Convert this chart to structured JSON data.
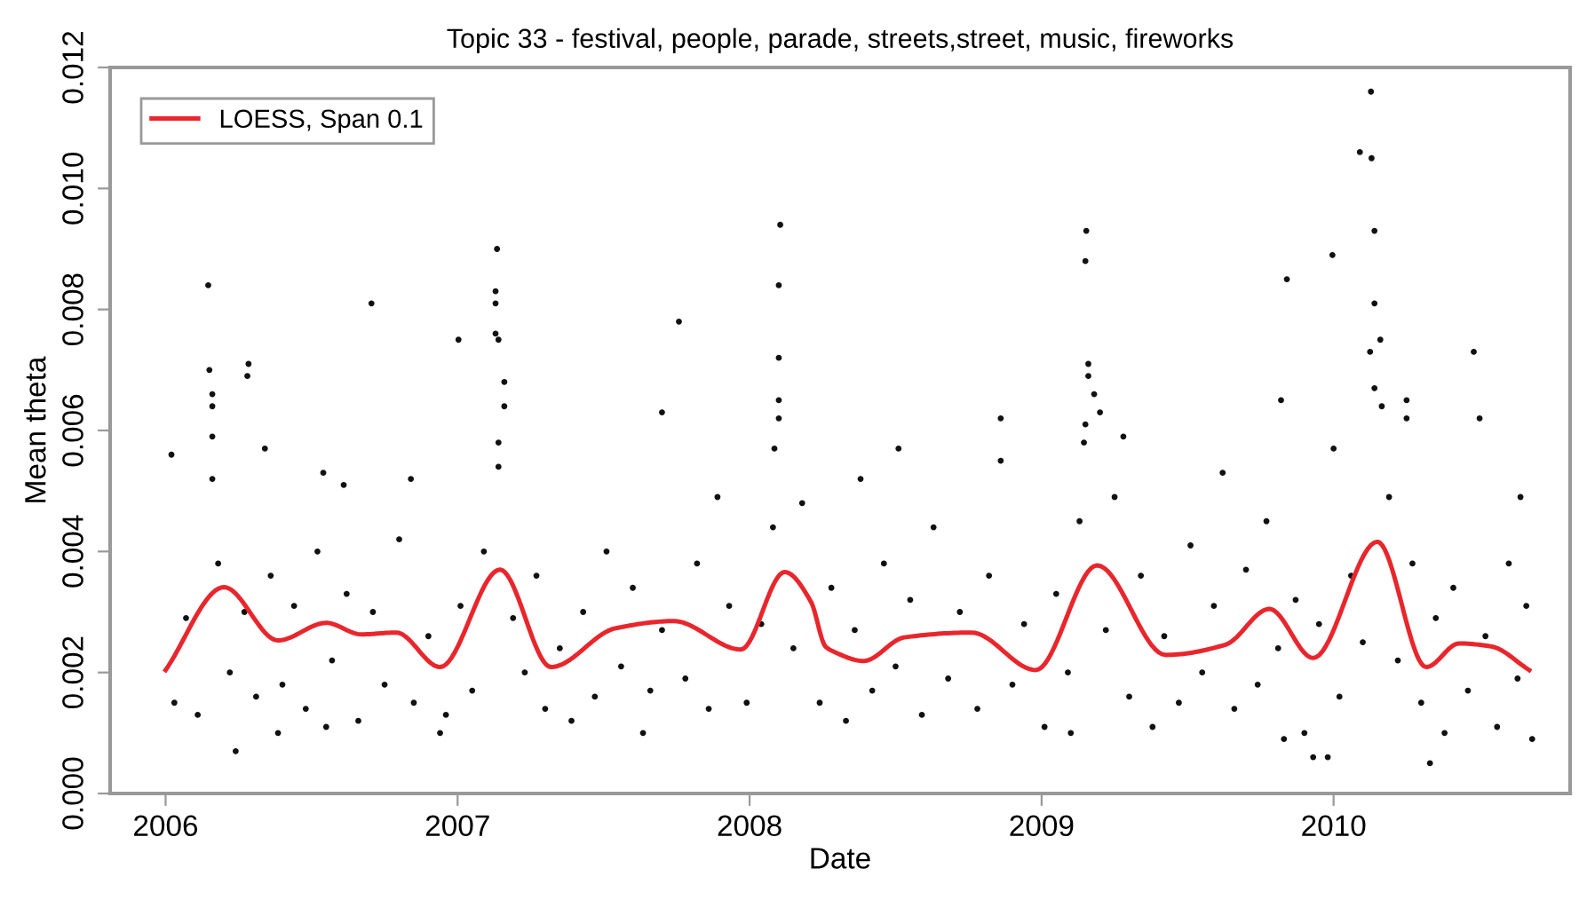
{
  "chart_data": {
    "type": "scatter",
    "title": "Topic 33 - festival, people, parade, streets,street, music, fireworks",
    "xlabel": "Date",
    "ylabel": "Mean theta",
    "xlim": [
      2005.81,
      2010.81
    ],
    "ylim": [
      0,
      0.012
    ],
    "xticks": [
      2006,
      2007,
      2008,
      2009,
      2010
    ],
    "yticks": [
      {
        "value": 0,
        "label": "0.000"
      },
      {
        "value": 0.002,
        "label": "0.002"
      },
      {
        "value": 0.004,
        "label": "0.004"
      },
      {
        "value": 0.006,
        "label": "0.006"
      },
      {
        "value": 0.008,
        "label": "0.008"
      },
      {
        "value": 0.01,
        "label": "0.010"
      },
      {
        "value": 0.012,
        "label": "0.012"
      }
    ],
    "grid": false,
    "legend": "top left",
    "marker": "circle",
    "series": [
      {
        "color": "#111111",
        "x": [
          2006.146,
          2006.15,
          2006.16,
          2006.16,
          2006.16,
          2006.16,
          2006.284,
          2006.28,
          2006.34,
          2006.02,
          2006.705,
          2007.003,
          2007.135,
          2007.13,
          2007.13,
          2007.13,
          2007.14,
          2007.16,
          2007.16,
          2007.14,
          2007.14,
          2007.758,
          2007.7,
          2008.105,
          2008.1,
          2008.1,
          2008.1,
          2008.1,
          2008.085,
          2006.61,
          2006.54,
          2006.84,
          2007.89,
          2006.24,
          2006.385,
          2006.94,
          2007.635,
          2006.55,
          2010.128,
          2010.09,
          2010.13,
          2010.14,
          2009.996,
          2009.84,
          2009.153,
          2009.15,
          2009.16,
          2009.16,
          2009.18,
          2009.2,
          2009.15,
          2009.145,
          2009.28,
          2008.86,
          2008.86,
          2010.48,
          2010.5,
          2010.14,
          2010.16,
          2010.125,
          2010.14,
          2010.165,
          2010.25,
          2010.25,
          2010.0,
          2009.82,
          2008.38,
          2008.51,
          2009.62,
          2010.33,
          2009.93,
          2009.98,
          2009.83,
          2009.1,
          2010.64,
          2006.03,
          2006.07,
          2006.11,
          2006.18,
          2006.22,
          2006.27,
          2006.31,
          2006.36,
          2006.4,
          2006.44,
          2006.48,
          2006.52,
          2006.57,
          2006.62,
          2006.66,
          2006.71,
          2006.75,
          2006.8,
          2006.85,
          2006.9,
          2006.96,
          2007.01,
          2007.05,
          2007.09,
          2007.19,
          2007.23,
          2007.27,
          2007.3,
          2007.35,
          2007.39,
          2007.43,
          2007.47,
          2007.51,
          2007.56,
          2007.6,
          2007.66,
          2007.7,
          2007.78,
          2007.82,
          2007.86,
          2007.93,
          2007.99,
          2008.04,
          2008.08,
          2008.15,
          2008.18,
          2008.24,
          2008.28,
          2008.33,
          2008.36,
          2008.42,
          2008.46,
          2008.5,
          2008.55,
          2008.59,
          2008.63,
          2008.68,
          2008.72,
          2008.78,
          2008.82,
          2008.9,
          2008.94,
          2009.01,
          2009.05,
          2009.09,
          2009.13,
          2009.22,
          2009.25,
          2009.3,
          2009.34,
          2009.38,
          2009.42,
          2009.47,
          2009.51,
          2009.55,
          2009.59,
          2009.66,
          2009.7,
          2009.74,
          2009.77,
          2009.81,
          2009.87,
          2009.9,
          2009.95,
          2010.02,
          2010.06,
          2010.1,
          2010.19,
          2010.22,
          2010.27,
          2010.3,
          2010.35,
          2010.38,
          2010.41,
          2010.46,
          2010.52,
          2010.56,
          2010.6,
          2010.63,
          2010.66,
          2010.68
        ],
        "values": [
          0.0084,
          0.007,
          0.0066,
          0.0064,
          0.0059,
          0.0052,
          0.0071,
          0.0069,
          0.0057,
          0.0056,
          0.0081,
          0.0075,
          0.009,
          0.0083,
          0.0081,
          0.0076,
          0.0075,
          0.0068,
          0.0064,
          0.0058,
          0.0054,
          0.0078,
          0.0063,
          0.0094,
          0.0084,
          0.0072,
          0.0065,
          0.0062,
          0.0057,
          0.0051,
          0.0053,
          0.0052,
          0.0049,
          0.0007,
          0.001,
          0.001,
          0.001,
          0.0011,
          0.0116,
          0.0106,
          0.0105,
          0.0093,
          0.0089,
          0.0085,
          0.0093,
          0.0088,
          0.0071,
          0.0069,
          0.0066,
          0.0063,
          0.0061,
          0.0058,
          0.0059,
          0.0062,
          0.0055,
          0.0073,
          0.0062,
          0.0081,
          0.0075,
          0.0073,
          0.0067,
          0.0064,
          0.0065,
          0.0062,
          0.0057,
          0.0065,
          0.0052,
          0.0057,
          0.0053,
          0.0005,
          0.0006,
          0.0006,
          0.0009,
          0.001,
          0.0049,
          0.0015,
          0.0029,
          0.0013,
          0.0038,
          0.002,
          0.003,
          0.0016,
          0.0036,
          0.0018,
          0.0031,
          0.0014,
          0.004,
          0.0022,
          0.0033,
          0.0012,
          0.003,
          0.0018,
          0.0042,
          0.0015,
          0.0026,
          0.0013,
          0.0031,
          0.0017,
          0.004,
          0.0029,
          0.002,
          0.0036,
          0.0014,
          0.0024,
          0.0012,
          0.003,
          0.0016,
          0.004,
          0.0021,
          0.0034,
          0.0017,
          0.0027,
          0.0019,
          0.0038,
          0.0014,
          0.0031,
          0.0015,
          0.0028,
          0.0044,
          0.0024,
          0.0048,
          0.0015,
          0.0034,
          0.0012,
          0.0027,
          0.0017,
          0.0038,
          0.0021,
          0.0032,
          0.0013,
          0.0044,
          0.0019,
          0.003,
          0.0014,
          0.0036,
          0.0018,
          0.0028,
          0.0011,
          0.0033,
          0.002,
          0.0045,
          0.0027,
          0.0049,
          0.0016,
          0.0036,
          0.0011,
          0.0026,
          0.0015,
          0.0041,
          0.002,
          0.0031,
          0.0014,
          0.0037,
          0.0018,
          0.0045,
          0.0024,
          0.0032,
          0.001,
          0.0028,
          0.0016,
          0.0036,
          0.0025,
          0.0049,
          0.0022,
          0.0038,
          0.0015,
          0.0029,
          0.001,
          0.0034,
          0.0017,
          0.0026,
          0.0011,
          0.0038,
          0.0019,
          0.0031,
          0.0009
        ]
      },
      {
        "type": "line",
        "name": "LOESS, Span 0.1",
        "color": "#e8262c",
        "marker": "none",
        "line_style": "solid",
        "x": [
          2006.0,
          2006.2,
          2006.385,
          2006.55,
          2006.67,
          2006.79,
          2006.94,
          2007.145,
          2007.32,
          2007.54,
          2007.74,
          2007.97,
          2008.12,
          2008.21,
          2008.26,
          2008.29,
          2008.39,
          2008.53,
          2008.76,
          2008.98,
          2009.19,
          2009.425,
          2009.63,
          2009.78,
          2009.93,
          2010.15,
          2010.317,
          2010.43,
          2010.54,
          2010.67
        ],
        "values": [
          0.00204,
          0.00341,
          0.00253,
          0.00282,
          0.00263,
          0.00266,
          0.00209,
          0.0037,
          0.00209,
          0.00273,
          0.00285,
          0.00238,
          0.00366,
          0.00317,
          0.00243,
          0.00234,
          0.00219,
          0.00258,
          0.00266,
          0.00204,
          0.00377,
          0.00229,
          0.00246,
          0.00305,
          0.00224,
          0.00416,
          0.00209,
          0.00248,
          0.00243,
          0.00204
        ]
      }
    ]
  }
}
